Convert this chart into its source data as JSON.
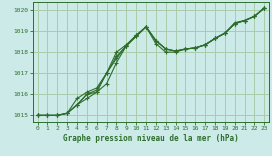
{
  "background_color": "#cceae7",
  "grid_color": "#aaccaa",
  "line_color": "#2d6e2d",
  "title": "Graphe pression niveau de la mer (hPa)",
  "xlim": [
    -0.5,
    23.5
  ],
  "ylim": [
    1014.7,
    1020.4
  ],
  "yticks": [
    1015,
    1016,
    1017,
    1018,
    1019,
    1020
  ],
  "xticks": [
    0,
    1,
    2,
    3,
    4,
    5,
    6,
    7,
    8,
    9,
    10,
    11,
    12,
    13,
    14,
    15,
    16,
    17,
    18,
    19,
    20,
    21,
    22,
    23
  ],
  "series_with_markers": [
    [
      1015.0,
      1015.0,
      1015.0,
      1015.1,
      1015.5,
      1015.8,
      1016.1,
      1016.5,
      1017.5,
      1018.3,
      1018.75,
      1019.2,
      1018.55,
      1018.15,
      1018.05,
      1018.15,
      1018.2,
      1018.35,
      1018.65,
      1018.9,
      1019.35,
      1019.5,
      1019.7,
      1020.1
    ],
    [
      1015.0,
      1015.0,
      1015.0,
      1015.1,
      1015.5,
      1016.0,
      1016.2,
      1017.0,
      1017.7,
      1018.3,
      1018.75,
      1019.2,
      1018.55,
      1018.15,
      1018.05,
      1018.15,
      1018.2,
      1018.35,
      1018.65,
      1018.9,
      1019.35,
      1019.5,
      1019.7,
      1020.1
    ],
    [
      1015.0,
      1015.0,
      1015.0,
      1015.1,
      1015.8,
      1016.1,
      1016.3,
      1017.0,
      1017.8,
      1018.3,
      1018.8,
      1019.2,
      1018.55,
      1018.15,
      1018.05,
      1018.15,
      1018.2,
      1018.35,
      1018.65,
      1018.9,
      1019.35,
      1019.5,
      1019.7,
      1020.1
    ]
  ],
  "series_spike": [
    1015.0,
    1015.0,
    1015.0,
    1015.1,
    1015.5,
    1016.0,
    1016.1,
    1017.0,
    1018.0,
    1018.35,
    1018.8,
    1019.2,
    1018.4,
    1018.0,
    1018.0,
    1018.15,
    1018.2,
    1018.35,
    1018.65,
    1018.9,
    1019.4,
    1019.5,
    1019.7,
    1020.1
  ]
}
